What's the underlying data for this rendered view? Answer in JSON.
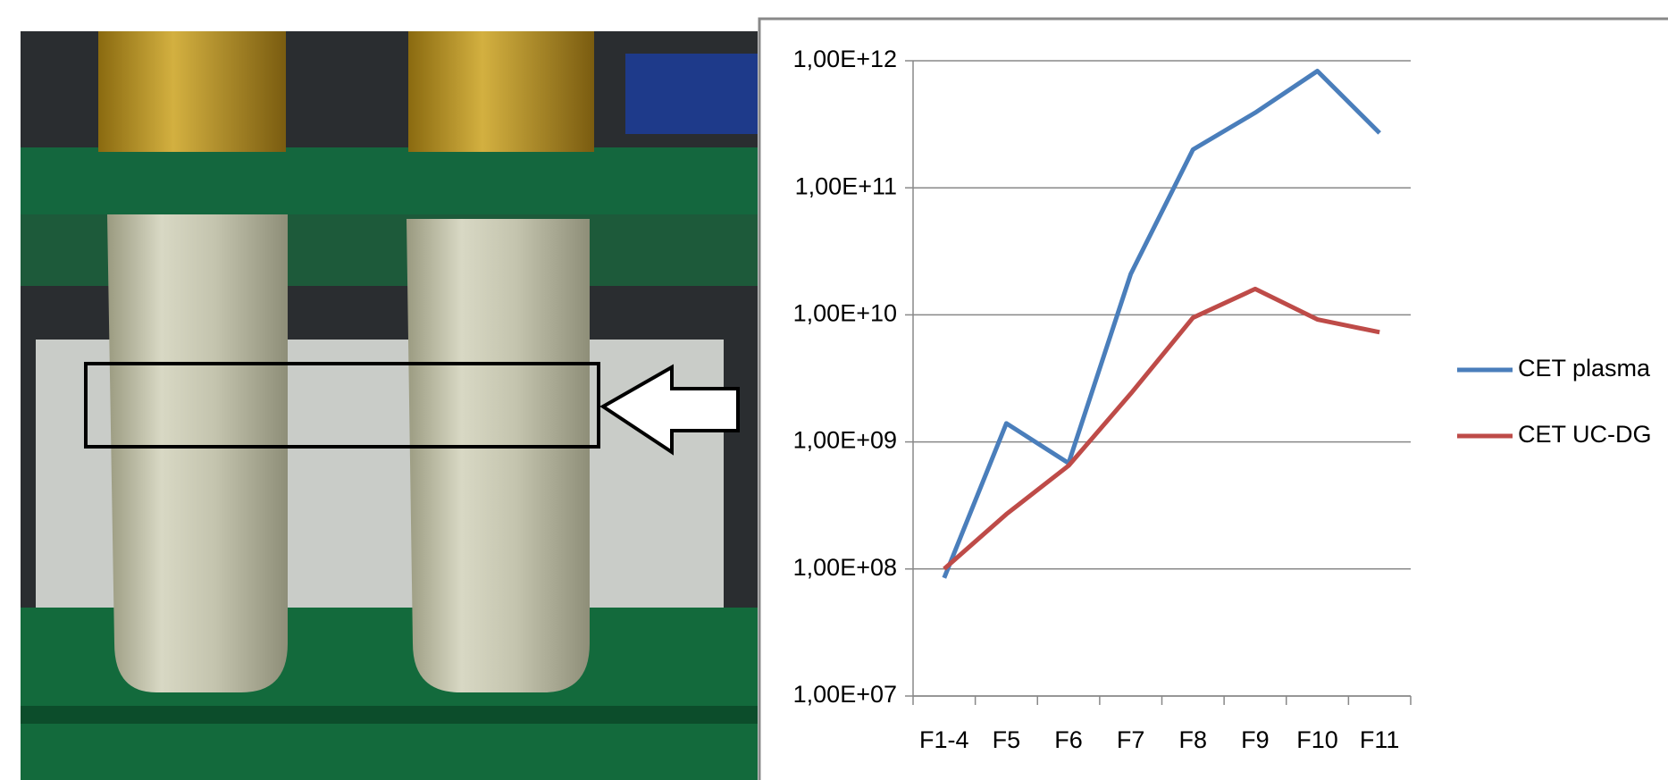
{
  "chart_data": {
    "type": "line",
    "yscale": "log",
    "grid": true,
    "legend": "right",
    "categories": [
      "F1-4",
      "F5",
      "F6",
      "F7",
      "F8",
      "F9",
      "F10",
      "F11"
    ],
    "series": [
      {
        "name": "CET plasma",
        "color": "#4a7ebb",
        "values": [
          85000000,
          1400000000,
          680000000,
          21000000000,
          200000000000,
          390000000000,
          830000000000,
          270000000000
        ]
      },
      {
        "name": "CET UC-DG",
        "color": "#be4b48",
        "values": [
          100000000,
          270000000,
          650000000,
          2400000000,
          9500000000,
          16000000000,
          9200000000,
          7300000000
        ]
      }
    ],
    "ylim": [
      10000000,
      1000000000000
    ],
    "yticks": [
      {
        "value": 10000000,
        "label": "1,00E+07"
      },
      {
        "value": 100000000,
        "label": "1,00E+08"
      },
      {
        "value": 1000000000,
        "label": "1,00E+09"
      },
      {
        "value": 10000000000,
        "label": "1,00E+10"
      },
      {
        "value": 100000000000,
        "label": "1,00E+11"
      },
      {
        "value": 1000000000000,
        "label": "1,00E+12"
      }
    ]
  }
}
